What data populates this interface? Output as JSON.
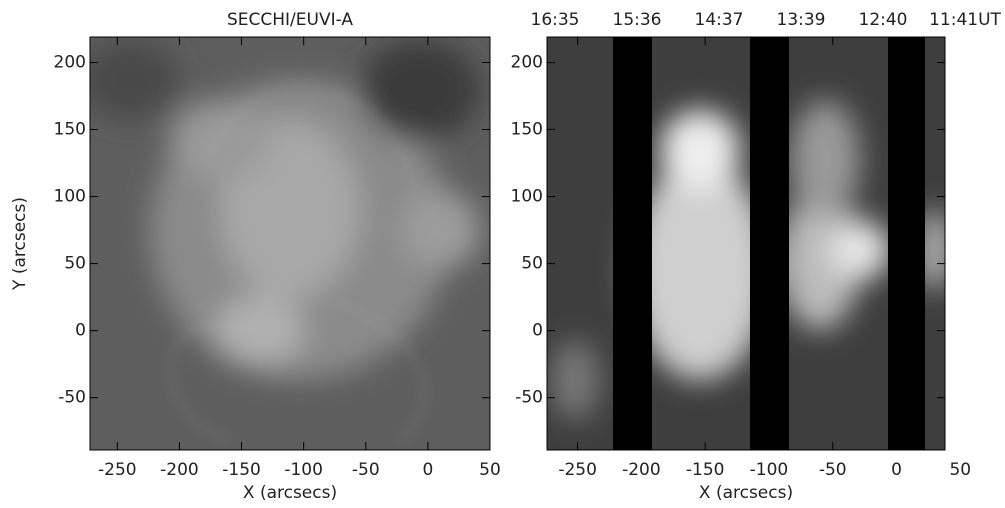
{
  "chart_data": [
    {
      "type": "image",
      "title": "SECCHI/EUVI-A",
      "x_label": "X (arcsecs)",
      "y_label": "Y (arcsecs)",
      "xlim": [
        -272,
        50
      ],
      "ylim": [
        -89,
        219
      ],
      "xticks": [
        -250,
        -200,
        -150,
        -100,
        -50,
        0,
        50
      ],
      "yticks": [
        -50,
        0,
        50,
        100,
        150,
        200
      ]
    },
    {
      "type": "image",
      "annotations": [
        "16:35",
        "15:36",
        "14:37",
        "13:39",
        "12:40",
        "11:41UT"
      ],
      "x_label": "X (arcsecs)",
      "xlim": [
        -274,
        38
      ],
      "ylim": [
        -89,
        219
      ],
      "xticks": [
        -250,
        -200,
        -150,
        -100,
        -50,
        0,
        50
      ],
      "yticks": [
        -50,
        0,
        50,
        100,
        150,
        200
      ]
    }
  ]
}
